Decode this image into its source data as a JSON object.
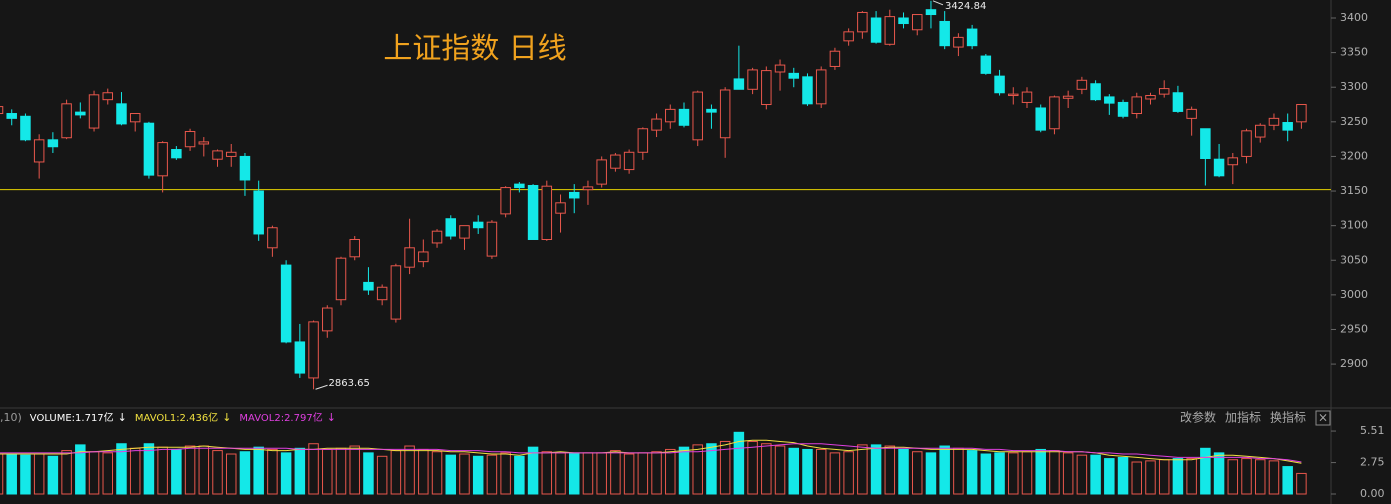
{
  "chart_data": [
    {
      "type": "candlestick",
      "title": "上证指数 日线",
      "open": [
        3262,
        3262,
        3258,
        3192,
        3224,
        3227,
        3264,
        3241,
        3282,
        3276,
        3250,
        3248,
        3172,
        3210,
        3214,
        3218,
        3196,
        3200,
        3200,
        3150,
        3068,
        3043,
        2932,
        2880,
        2948,
        2993,
        3055,
        3018,
        2993,
        2965,
        3040,
        3048,
        3075,
        3110,
        3082,
        3105,
        3056,
        3117,
        3160,
        3158,
        3080,
        3118,
        3148,
        3152,
        3160,
        3183,
        3181,
        3206,
        3238,
        3250,
        3268,
        3224,
        3268,
        3227,
        3312,
        3297,
        3275,
        3322,
        3320,
        3315,
        3276,
        3330,
        3367,
        3380,
        3400,
        3362,
        3400,
        3383,
        3412,
        3395,
        3358,
        3384,
        3345,
        3316,
        3288,
        3278,
        3270,
        3240,
        3284,
        3297,
        3305,
        3286,
        3278,
        3262,
        3283,
        3290,
        3292,
        3255,
        3240,
        3196,
        3188,
        3200,
        3228,
        3245,
        3249,
        3250
      ],
      "high": [
        3275,
        3268,
        3262,
        3232,
        3235,
        3282,
        3278,
        3295,
        3298,
        3293,
        3262,
        3250,
        3222,
        3215,
        3240,
        3228,
        3210,
        3218,
        3205,
        3165,
        3100,
        3050,
        2958,
        2963,
        2985,
        3055,
        3085,
        3040,
        3015,
        3045,
        3110,
        3080,
        3095,
        3115,
        3098,
        3115,
        3108,
        3157,
        3163,
        3160,
        3165,
        3145,
        3160,
        3165,
        3200,
        3205,
        3210,
        3242,
        3262,
        3275,
        3278,
        3295,
        3275,
        3300,
        3360,
        3328,
        3330,
        3340,
        3328,
        3320,
        3330,
        3357,
        3385,
        3410,
        3410,
        3412,
        3408,
        3405,
        3424.84,
        3410,
        3378,
        3390,
        3348,
        3325,
        3300,
        3300,
        3275,
        3288,
        3295,
        3315,
        3310,
        3290,
        3282,
        3292,
        3292,
        3310,
        3302,
        3272,
        3240,
        3218,
        3205,
        3240,
        3248,
        3262,
        3262,
        3275
      ],
      "low": [
        3255,
        3245,
        3222,
        3168,
        3205,
        3225,
        3255,
        3236,
        3275,
        3245,
        3236,
        3168,
        3148,
        3195,
        3208,
        3200,
        3185,
        3185,
        3143,
        3078,
        3055,
        2930,
        2880,
        2863.65,
        2938,
        2985,
        3050,
        3000,
        2985,
        2960,
        3030,
        3040,
        3068,
        3080,
        3065,
        3088,
        3052,
        3112,
        3148,
        3080,
        3078,
        3090,
        3118,
        3130,
        3155,
        3178,
        3175,
        3195,
        3228,
        3240,
        3242,
        3215,
        3240,
        3198,
        3298,
        3290,
        3268,
        3295,
        3300,
        3273,
        3270,
        3325,
        3360,
        3370,
        3363,
        3360,
        3385,
        3375,
        3385,
        3355,
        3345,
        3355,
        3318,
        3288,
        3275,
        3270,
        3235,
        3232,
        3270,
        3290,
        3280,
        3260,
        3255,
        3255,
        3275,
        3285,
        3263,
        3230,
        3158,
        3170,
        3160,
        3190,
        3220,
        3238,
        3222,
        3240
      ],
      "close": [
        3272,
        3255,
        3224,
        3224,
        3214,
        3276,
        3260,
        3289,
        3292,
        3247,
        3262,
        3173,
        3220,
        3198,
        3236,
        3221,
        3208,
        3206,
        3166,
        3088,
        3097,
        2932,
        2887,
        2961,
        2981,
        3053,
        3080,
        3007,
        3011,
        3042,
        3068,
        3062,
        3092,
        3085,
        3100,
        3097,
        3105,
        3155,
        3155,
        3080,
        3157,
        3133,
        3140,
        3156,
        3195,
        3202,
        3206,
        3240,
        3254,
        3268,
        3245,
        3293,
        3264,
        3296,
        3297,
        3325,
        3324,
        3332,
        3313,
        3276,
        3325,
        3352,
        3380,
        3408,
        3365,
        3402,
        3392,
        3405,
        3405,
        3360,
        3372,
        3360,
        3320,
        3292,
        3290,
        3293,
        3238,
        3286,
        3287,
        3310,
        3282,
        3277,
        3258,
        3286,
        3288,
        3298,
        3265,
        3268,
        3197,
        3172,
        3198,
        3237,
        3245,
        3255,
        3238,
        3275
      ],
      "up_color": "#e8574c",
      "down_color": "#14e8e8",
      "max_label": "3424.84",
      "min_label": "2863.65",
      "reference_line": 3152,
      "reference_color": "#e6d200",
      "ylim": [
        2838,
        3426
      ],
      "yticks": [
        2900,
        2950,
        3000,
        3050,
        3100,
        3150,
        3200,
        3250,
        3300,
        3350,
        3400
      ]
    },
    {
      "type": "volume",
      "params": ",10)",
      "values": [
        3.5,
        3.5,
        3.4,
        3.5,
        3.3,
        3.8,
        4.3,
        3.7,
        3.6,
        4.4,
        4.0,
        4.4,
        4.1,
        3.9,
        4.2,
        4.2,
        3.8,
        3.5,
        3.7,
        4.1,
        3.9,
        3.6,
        4.0,
        4.4,
        3.9,
        4.0,
        4.2,
        3.6,
        3.3,
        3.8,
        4.2,
        3.9,
        3.7,
        3.4,
        3.5,
        3.3,
        3.4,
        3.6,
        3.3,
        4.1,
        3.7,
        3.6,
        3.6,
        3.6,
        3.6,
        3.8,
        3.5,
        3.6,
        3.7,
        3.9,
        4.1,
        4.3,
        4.4,
        4.6,
        5.4,
        4.6,
        4.4,
        4.2,
        4.0,
        3.9,
        3.9,
        3.6,
        3.7,
        4.3,
        4.3,
        4.2,
        3.9,
        3.7,
        3.6,
        4.2,
        4.0,
        3.8,
        3.5,
        3.6,
        3.6,
        3.7,
        3.9,
        3.8,
        3.6,
        3.4,
        3.4,
        3.1,
        3.2,
        2.8,
        2.9,
        3.0,
        3.1,
        3.1,
        4.0,
        3.6,
        3.0,
        3.1,
        3.0,
        2.9,
        2.4,
        1.8
      ],
      "legend": [
        {
          "name": "VOLUME:1.717亿",
          "arrow": "↓",
          "color": "#ffffff"
        }
      ],
      "series": [
        {
          "name": "MAVOL1:2.436亿",
          "arrow": "↓",
          "color": "#f0e040",
          "values": [
            3.5,
            3.5,
            3.5,
            3.5,
            3.5,
            3.5,
            3.7,
            3.7,
            3.8,
            3.9,
            4.0,
            4.1,
            4.1,
            4.1,
            4.1,
            4.2,
            4.1,
            4.0,
            3.9,
            3.9,
            3.8,
            3.8,
            3.9,
            3.9,
            4.0,
            4.0,
            4.0,
            4.0,
            3.9,
            3.8,
            3.8,
            3.8,
            3.8,
            3.7,
            3.7,
            3.6,
            3.5,
            3.5,
            3.4,
            3.6,
            3.6,
            3.7,
            3.6,
            3.6,
            3.6,
            3.7,
            3.6,
            3.6,
            3.6,
            3.7,
            3.8,
            3.9,
            4.1,
            4.3,
            4.6,
            4.7,
            4.7,
            4.6,
            4.5,
            4.2,
            4.0,
            3.9,
            3.8,
            3.9,
            4.0,
            4.1,
            4.1,
            4.0,
            3.9,
            3.9,
            3.9,
            3.9,
            3.8,
            3.7,
            3.7,
            3.7,
            3.7,
            3.7,
            3.7,
            3.7,
            3.6,
            3.4,
            3.3,
            3.2,
            3.1,
            3.0,
            3.0,
            3.0,
            3.2,
            3.4,
            3.4,
            3.3,
            3.2,
            3.1,
            2.9,
            2.7
          ]
        },
        {
          "name": "MAVOL2:2.797亿",
          "arrow": "↓",
          "color": "#e040e0",
          "values": [
            3.6,
            3.6,
            3.6,
            3.6,
            3.6,
            3.6,
            3.6,
            3.7,
            3.7,
            3.7,
            3.8,
            3.8,
            3.9,
            3.9,
            4.0,
            4.0,
            4.0,
            4.0,
            4.0,
            4.0,
            4.0,
            4.0,
            3.9,
            3.9,
            3.9,
            3.9,
            3.9,
            3.9,
            3.9,
            3.9,
            3.9,
            3.9,
            3.9,
            3.8,
            3.8,
            3.8,
            3.7,
            3.7,
            3.6,
            3.6,
            3.6,
            3.6,
            3.6,
            3.6,
            3.6,
            3.6,
            3.6,
            3.6,
            3.6,
            3.6,
            3.7,
            3.7,
            3.8,
            3.9,
            4.0,
            4.1,
            4.2,
            4.3,
            4.4,
            4.4,
            4.4,
            4.3,
            4.2,
            4.1,
            4.0,
            4.0,
            4.0,
            4.0,
            4.0,
            4.0,
            4.0,
            4.0,
            3.9,
            3.9,
            3.8,
            3.8,
            3.8,
            3.8,
            3.7,
            3.7,
            3.6,
            3.6,
            3.5,
            3.5,
            3.4,
            3.3,
            3.2,
            3.2,
            3.2,
            3.2,
            3.2,
            3.2,
            3.1,
            3.1,
            3.0,
            2.8
          ]
        }
      ],
      "buttons": [
        "改参数",
        "加指标",
        "换指标"
      ],
      "close_button": "×",
      "ylim": [
        0,
        6.04
      ],
      "yticks": [
        {
          "value": 0,
          "label": "0.00"
        },
        2.75,
        5.51
      ]
    }
  ]
}
